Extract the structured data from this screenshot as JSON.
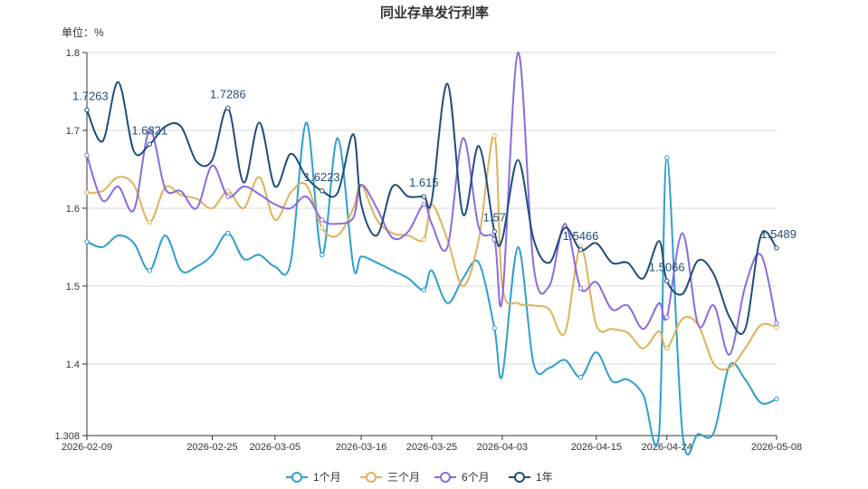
{
  "chart_data": {
    "type": "line",
    "title": "同业存单发行利率",
    "unit_label": "单位：%",
    "xlabel": "",
    "ylabel": "",
    "ylim": [
      1.308,
      1.8
    ],
    "yticks": [
      "1.8",
      "1.7",
      "1.6",
      "1.5",
      "1.4",
      "1.308"
    ],
    "x": [
      "2026-02-09",
      "2026-02-11",
      "2026-02-13",
      "2026-02-15",
      "2026-02-17",
      "2026-02-19",
      "2026-02-21",
      "2026-02-23",
      "2026-02-25",
      "2026-02-27",
      "2026-03-01",
      "2026-03-03",
      "2026-03-05",
      "2026-03-07",
      "2026-03-09",
      "2026-03-11",
      "2026-03-13",
      "2026-03-15",
      "2026-03-16",
      "2026-03-18",
      "2026-03-20",
      "2026-03-22",
      "2026-03-24",
      "2026-03-25",
      "2026-03-27",
      "2026-03-29",
      "2026-03-31",
      "2026-04-02",
      "2026-04-03",
      "2026-04-05",
      "2026-04-07",
      "2026-04-09",
      "2026-04-11",
      "2026-04-13",
      "2026-04-15",
      "2026-04-17",
      "2026-04-19",
      "2026-04-21",
      "2026-04-23",
      "2026-04-24",
      "2026-04-26",
      "2026-04-28",
      "2026-04-30",
      "2026-05-02",
      "2026-05-04",
      "2026-05-06",
      "2026-05-08"
    ],
    "xticks": [
      "2026-02-09",
      "2026-02-25",
      "2026-03-05",
      "2026-03-16",
      "2026-03-25",
      "2026-04-03",
      "2026-04-15",
      "2026-04-24",
      "2026-05-08"
    ],
    "series": [
      {
        "name": "1个月",
        "color": "#2e9fce",
        "values": [
          1.557,
          1.55,
          1.565,
          1.555,
          1.52,
          1.565,
          1.52,
          1.525,
          1.54,
          1.568,
          1.535,
          1.54,
          1.525,
          1.53,
          1.71,
          1.54,
          1.69,
          1.525,
          1.538,
          1.53,
          1.52,
          1.51,
          1.495,
          1.52,
          1.478,
          1.51,
          1.53,
          1.446,
          1.385,
          1.55,
          1.4,
          1.395,
          1.405,
          1.383,
          1.415,
          1.378,
          1.38,
          1.36,
          1.31,
          1.665,
          1.31,
          1.31,
          1.312,
          1.398,
          1.38,
          1.35,
          1.355
        ],
        "labels": []
      },
      {
        "name": "三个月",
        "color": "#e0b25a",
        "values": [
          1.62,
          1.622,
          1.64,
          1.63,
          1.582,
          1.627,
          1.617,
          1.612,
          1.6,
          1.622,
          1.6,
          1.64,
          1.585,
          1.62,
          1.63,
          1.575,
          1.565,
          1.6,
          1.63,
          1.585,
          1.568,
          1.565,
          1.56,
          1.605,
          1.56,
          1.5,
          1.56,
          1.693,
          1.5,
          1.478,
          1.475,
          1.47,
          1.44,
          1.55,
          1.45,
          1.445,
          1.44,
          1.42,
          1.442,
          1.42,
          1.458,
          1.45,
          1.4,
          1.395,
          1.42,
          1.45,
          1.447
        ],
        "labels": []
      },
      {
        "name": "6个月",
        "color": "#8c6be0",
        "values": [
          1.668,
          1.61,
          1.628,
          1.598,
          1.7,
          1.625,
          1.622,
          1.6,
          1.655,
          1.615,
          1.628,
          1.618,
          1.605,
          1.6,
          1.615,
          1.585,
          1.58,
          1.588,
          1.63,
          1.6,
          1.562,
          1.57,
          1.605,
          1.58,
          1.55,
          1.69,
          1.575,
          1.56,
          1.483,
          1.8,
          1.525,
          1.5,
          1.58,
          1.497,
          1.505,
          1.47,
          1.475,
          1.445,
          1.478,
          1.46,
          1.568,
          1.45,
          1.475,
          1.412,
          1.5,
          1.54,
          1.452
        ],
        "labels": []
      },
      {
        "name": "1年",
        "color": "#1f4e79",
        "values": [
          1.7263,
          1.686,
          1.762,
          1.673,
          1.6821,
          1.705,
          1.705,
          1.66,
          1.662,
          1.7286,
          1.633,
          1.71,
          1.628,
          1.67,
          1.64,
          1.6223,
          1.62,
          1.695,
          1.605,
          1.565,
          1.628,
          1.615,
          1.615,
          1.61,
          1.76,
          1.592,
          1.68,
          1.57,
          1.56,
          1.662,
          1.56,
          1.53,
          1.575,
          1.5466,
          1.555,
          1.53,
          1.53,
          1.51,
          1.558,
          1.5066,
          1.49,
          1.533,
          1.515,
          1.46,
          1.445,
          1.565,
          1.5489
        ],
        "labels": [
          {
            "index": 0,
            "text": "1.7263"
          },
          {
            "index": 4,
            "text": "1.6821"
          },
          {
            "index": 9,
            "text": "1.7286"
          },
          {
            "index": 15,
            "text": "1.6223"
          },
          {
            "index": 22,
            "text": "1.615"
          },
          {
            "index": 27,
            "text": "1.57"
          },
          {
            "index": 33,
            "text": "1.5466"
          },
          {
            "index": 39,
            "text": "1.5066"
          },
          {
            "index": 46,
            "text": "1.5489"
          }
        ]
      }
    ],
    "legend": {
      "placement": "bottom-center"
    },
    "grid": true
  }
}
